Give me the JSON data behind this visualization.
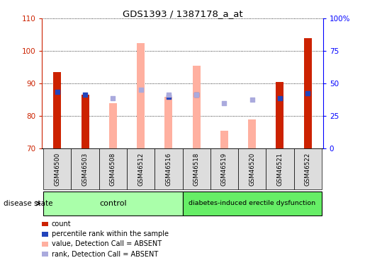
{
  "title": "GDS1393 / 1387178_a_at",
  "samples": [
    "GSM46500",
    "GSM46503",
    "GSM46508",
    "GSM46512",
    "GSM46516",
    "GSM46518",
    "GSM46519",
    "GSM46520",
    "GSM46521",
    "GSM46522"
  ],
  "red_bars": [
    93.5,
    86.5,
    null,
    null,
    null,
    null,
    null,
    null,
    90.5,
    104.0
  ],
  "red_bar_base": 70,
  "pink_bars": [
    null,
    null,
    84.0,
    102.5,
    86.0,
    95.5,
    75.5,
    79.0,
    null,
    null
  ],
  "pink_bar_base": 70,
  "blue_squares": [
    87.5,
    86.5,
    null,
    null,
    86.0,
    86.5,
    null,
    null,
    85.5,
    87.0
  ],
  "lavender_squares": [
    null,
    null,
    85.5,
    88.0,
    86.5,
    86.5,
    84.0,
    85.0,
    null,
    null
  ],
  "ylim_left": [
    70,
    110
  ],
  "ylim_right": [
    0,
    100
  ],
  "yticks_left": [
    70,
    80,
    90,
    100,
    110
  ],
  "yticks_right": [
    0,
    25,
    50,
    75,
    100
  ],
  "ytick_labels_right": [
    "0",
    "25",
    "50",
    "75",
    "100%"
  ],
  "red_color": "#CC2200",
  "pink_color": "#FFB0A0",
  "blue_color": "#2244BB",
  "lavender_color": "#AAAADD",
  "control_color": "#AAFFAA",
  "diabetes_color": "#66EE66",
  "label_bg_color": "#DDDDDD",
  "legend_labels": [
    "count",
    "percentile rank within the sample",
    "value, Detection Call = ABSENT",
    "rank, Detection Call = ABSENT"
  ],
  "legend_colors": [
    "#CC2200",
    "#2244BB",
    "#FFB0A0",
    "#AAAADD"
  ]
}
